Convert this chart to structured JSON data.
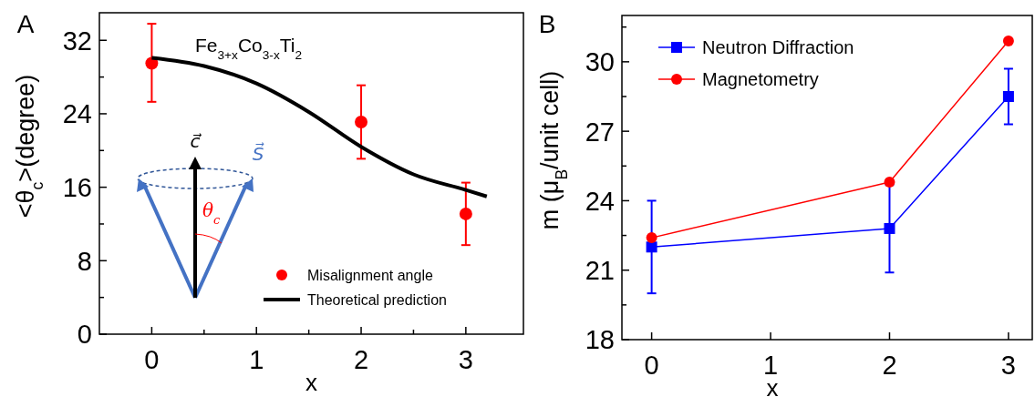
{
  "chart_data": [
    {
      "type": "scatter",
      "xlabel": "x",
      "ylabel": "<θ$_{c}$>(degree)",
      "annotations": [
        "A",
        "Fe$_{3+x}$Co$_{3-x}$Ti$_{2}$",
        "c⃗",
        "S⃗",
        "θ$_{c}$"
      ],
      "xlim": [
        -0.5,
        3.55
      ],
      "xticks": [
        0,
        {
          "value": 0.5,
          "label": null
        },
        1,
        {
          "value": 1.5,
          "label": null
        },
        2,
        {
          "value": 2.5,
          "label": null
        },
        3
      ],
      "ylim": [
        0,
        35
      ],
      "yticks": [
        0,
        {
          "value": 4,
          "label": null
        },
        8,
        {
          "value": 12,
          "label": null
        },
        16,
        {
          "value": 20,
          "label": null
        },
        24,
        {
          "value": 28,
          "label": null
        },
        32
      ],
      "grid": false,
      "legend": "bottom right",
      "series": [
        {
          "name": "Misalignment angle",
          "type": "scatter",
          "color": "#ff0000",
          "marker": "circle",
          "x": [
            0,
            2,
            3
          ],
          "values": [
            29.5,
            23.1,
            13.1
          ],
          "errors": [
            [
              25.3,
              33.8
            ],
            [
              19.1,
              27.1
            ],
            [
              9.7,
              16.5
            ]
          ]
        },
        {
          "name": "Theoretical prediction",
          "type": "line",
          "color": "#000000",
          "marker": "none",
          "x": [
            0,
            0.5,
            1,
            1.5,
            2,
            2.5,
            3,
            3.2
          ],
          "values": [
            30.1,
            29.2,
            27.3,
            24.2,
            20.4,
            17.4,
            15.7,
            15.0
          ]
        }
      ]
    },
    {
      "type": "line",
      "xlabel": "x",
      "ylabel": "m (μ$_{B}$/unit cell)",
      "annotations": [
        "B"
      ],
      "xlim": [
        -0.25,
        3.2
      ],
      "xticks": [
        0,
        1,
        2,
        3
      ],
      "ylim": [
        18,
        32
      ],
      "yticks": [
        18,
        {
          "value": 19.5,
          "label": null
        },
        21,
        {
          "value": 22.5,
          "label": null
        },
        24,
        {
          "value": 25.5,
          "label": null
        },
        27,
        {
          "value": 28.5,
          "label": null
        },
        30,
        {
          "value": 31.5,
          "label": null
        }
      ],
      "grid": false,
      "legend": "top left",
      "series": [
        {
          "name": "Neutron Diffraction",
          "color": "#0000ff",
          "marker": "square",
          "x": [
            0,
            2,
            3
          ],
          "values": [
            22.0,
            22.8,
            28.5
          ],
          "errors": [
            2.0,
            1.9,
            1.2
          ]
        },
        {
          "name": "Magnetometry",
          "color": "#ff0000",
          "marker": "circle",
          "x": [
            0,
            2,
            3
          ],
          "values": [
            22.4,
            24.8,
            30.9
          ]
        }
      ]
    }
  ]
}
